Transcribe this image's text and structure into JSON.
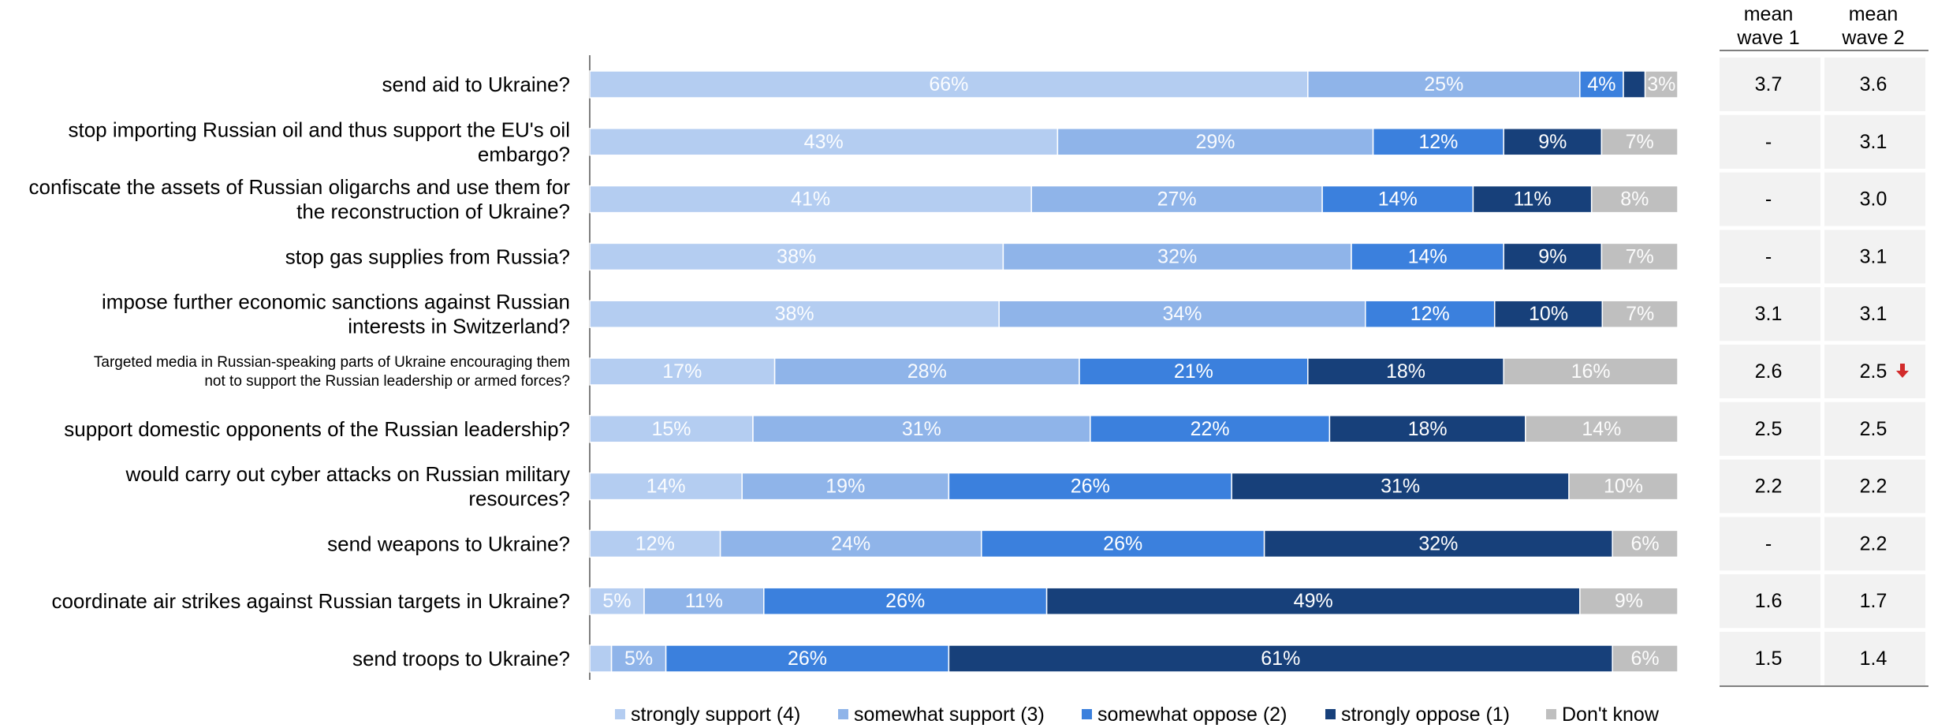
{
  "chart_data": {
    "type": "bar",
    "orientation": "horizontal",
    "stacked": true,
    "percent_scale": true,
    "categories": [
      "send aid to Ukraine?",
      "stop importing Russian oil and thus support the EU's oil embargo?",
      "confiscate the assets of Russian oligarchs and use them for the reconstruction of Ukraine?",
      "stop gas supplies from Russia?",
      "impose further economic sanctions against Russian interests in Switzerland?",
      "Targeted media in Russian-speaking parts of Ukraine encouraging them not to support the Russian leadership or armed forces?",
      "support domestic opponents of the Russian leadership?",
      "would carry out cyber attacks on Russian military resources?",
      "send weapons to Ukraine?",
      "coordinate air strikes against Russian targets in Ukraine?",
      "send troops to Ukraine?"
    ],
    "category_lines": [
      [
        "send aid to Ukraine?"
      ],
      [
        "stop importing Russian oil and thus support the EU's oil",
        "embargo?"
      ],
      [
        "confiscate the assets of Russian oligarchs and use them for",
        "the reconstruction of Ukraine?"
      ],
      [
        "stop gas supplies from Russia?"
      ],
      [
        "impose further economic sanctions against Russian",
        "interests in Switzerland?"
      ],
      [
        "Targeted media in Russian-speaking parts of Ukraine encouraging them",
        "not to support the Russian leadership or armed forces?"
      ],
      [
        "support domestic opponents of the Russian leadership?"
      ],
      [
        "would carry out cyber attacks on Russian military",
        "resources?"
      ],
      [
        "send weapons to Ukraine?"
      ],
      [
        "coordinate air strikes against Russian targets in Ukraine?"
      ],
      [
        "send troops to Ukraine?"
      ]
    ],
    "small_label_rows": [
      5
    ],
    "series": [
      {
        "name": "strongly support (4)",
        "color": "#b4cdf1",
        "values": [
          66,
          43,
          41,
          38,
          38,
          17,
          15,
          14,
          12,
          5,
          2
        ],
        "labels": [
          "66%",
          "43%",
          "41%",
          "38%",
          "38%",
          "17%",
          "15%",
          "14%",
          "12%",
          "5%",
          ""
        ]
      },
      {
        "name": "somewhat support (3)",
        "color": "#8fb4e9",
        "values": [
          25,
          29,
          27,
          32,
          34,
          28,
          31,
          19,
          24,
          11,
          5
        ],
        "labels": [
          "25%",
          "29%",
          "27%",
          "32%",
          "34%",
          "28%",
          "31%",
          "19%",
          "24%",
          "11%",
          "5%"
        ]
      },
      {
        "name": "somewhat oppose (2)",
        "color": "#3b80dd",
        "values": [
          4,
          12,
          14,
          14,
          12,
          21,
          22,
          26,
          26,
          26,
          26
        ],
        "labels": [
          "4%",
          "12%",
          "14%",
          "14%",
          "12%",
          "21%",
          "22%",
          "26%",
          "26%",
          "26%",
          "26%"
        ]
      },
      {
        "name": "strongly oppose (1)",
        "color": "#17407a",
        "values": [
          2,
          9,
          11,
          9,
          10,
          18,
          18,
          31,
          32,
          49,
          61
        ],
        "labels": [
          "",
          "9%",
          "11%",
          "9%",
          "10%",
          "18%",
          "18%",
          "31%",
          "32%",
          "49%",
          "61%"
        ]
      },
      {
        "name": "Don't know",
        "color": "#bfbfbf",
        "values": [
          3,
          7,
          8,
          7,
          7,
          16,
          14,
          10,
          6,
          9,
          6
        ],
        "labels": [
          "3%",
          "7%",
          "8%",
          "7%",
          "7%",
          "16%",
          "14%",
          "10%",
          "6%",
          "9%",
          "6%"
        ]
      }
    ],
    "mean_table": {
      "headers": [
        [
          "mean",
          "wave 1"
        ],
        [
          "mean",
          "wave 2"
        ]
      ],
      "wave1": [
        "3.7",
        "-",
        "-",
        "-",
        "3.1",
        "2.6",
        "2.5",
        "2.2",
        "-",
        "1.6",
        "1.5"
      ],
      "wave2": [
        "3.6",
        "3.1",
        "3.0",
        "3.1",
        "3.1",
        "2.5",
        "2.5",
        "2.2",
        "2.2",
        "1.7",
        "1.4"
      ],
      "decrease_marker_rows": [
        5
      ],
      "marker_color": "#d22b2b",
      "cell_color": "#f2f2f2"
    },
    "legend_position": "bottom",
    "grid": false
  }
}
